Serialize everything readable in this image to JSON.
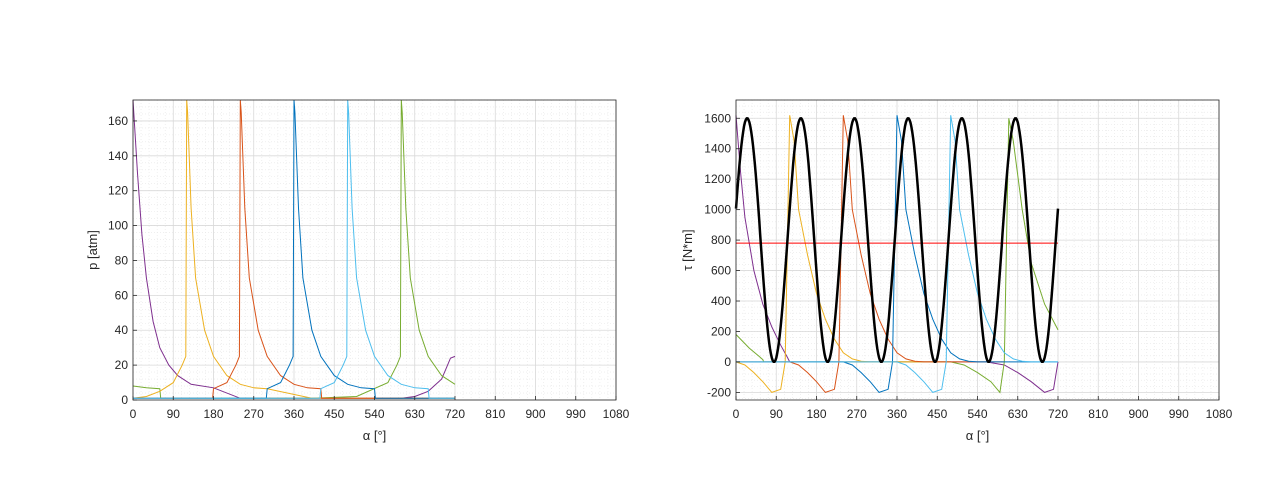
{
  "chart_data": [
    {
      "type": "line",
      "title": "",
      "xlabel": "α [°]",
      "ylabel": "p [atm]",
      "xlim": [
        0,
        1080
      ],
      "ylim": [
        0,
        172
      ],
      "xticks": [
        0,
        90,
        180,
        270,
        360,
        450,
        540,
        630,
        720,
        810,
        900,
        990,
        1080
      ],
      "yticks": [
        0,
        20,
        40,
        60,
        80,
        100,
        120,
        140,
        160
      ],
      "grid": true,
      "minor_grid": true,
      "series": [
        {
          "color": "#7E2F8E",
          "x": [
            0,
            10,
            20,
            30,
            45,
            60,
            80,
            100,
            130,
            180,
            240,
            300,
            360,
            420,
            480,
            540,
            600,
            630,
            660,
            690,
            700,
            710,
            720
          ],
          "y": [
            172,
            130,
            95,
            70,
            45,
            30,
            20,
            14,
            9,
            7,
            1,
            1,
            1,
            1,
            1,
            1,
            1,
            2,
            5,
            12,
            18,
            24,
            25
          ]
        },
        {
          "color": "#77AC30",
          "x": [
            0,
            30,
            60,
            62,
            100,
            180,
            300,
            400,
            500,
            570,
            590,
            598,
            600,
            602,
            610,
            620,
            640,
            660,
            690,
            720
          ],
          "y": [
            8,
            7,
            6.5,
            1,
            1,
            1,
            1,
            1,
            2,
            10,
            20,
            25,
            172,
            165,
            110,
            70,
            40,
            25,
            14,
            9
          ]
        },
        {
          "color": "#EDB120",
          "x": [
            0,
            30,
            60,
            90,
            110,
            118,
            120,
            122,
            130,
            140,
            160,
            180,
            210,
            240,
            270,
            300,
            400,
            500,
            600,
            720
          ],
          "y": [
            1,
            2,
            5,
            10,
            20,
            25,
            172,
            165,
            110,
            70,
            40,
            25,
            14,
            9,
            7,
            6.5,
            1,
            1,
            1,
            1
          ]
        },
        {
          "color": "#D95319",
          "x": [
            0,
            100,
            178,
            180,
            210,
            230,
            238,
            240,
            242,
            250,
            260,
            280,
            300,
            330,
            360,
            390,
            420,
            422,
            500,
            720
          ],
          "y": [
            1,
            1,
            1,
            6.5,
            10,
            20,
            25,
            172,
            165,
            110,
            70,
            40,
            25,
            14,
            9,
            7,
            6.5,
            1,
            1,
            1
          ]
        },
        {
          "color": "#0072BD",
          "x": [
            0,
            200,
            298,
            300,
            330,
            350,
            358,
            360,
            362,
            370,
            380,
            400,
            420,
            450,
            480,
            510,
            540,
            542,
            600,
            720
          ],
          "y": [
            1,
            1,
            1,
            6.5,
            10,
            20,
            25,
            172,
            165,
            110,
            70,
            40,
            25,
            14,
            9,
            7,
            6.5,
            1,
            1,
            1
          ]
        },
        {
          "color": "#4DBEEE",
          "x": [
            0,
            300,
            418,
            420,
            450,
            470,
            478,
            480,
            482,
            490,
            500,
            520,
            540,
            570,
            600,
            630,
            660,
            662,
            720
          ],
          "y": [
            1,
            1,
            1,
            6.5,
            10,
            20,
            25,
            172,
            165,
            110,
            70,
            40,
            25,
            14,
            9,
            7,
            6.5,
            1,
            1
          ]
        }
      ]
    },
    {
      "type": "line",
      "title": "",
      "xlabel": "α [°]",
      "ylabel": "τ [N*m]",
      "xlim": [
        0,
        1080
      ],
      "ylim": [
        -250,
        1720
      ],
      "xticks": [
        0,
        90,
        180,
        270,
        360,
        450,
        540,
        630,
        720,
        810,
        900,
        990,
        1080
      ],
      "yticks": [
        -200,
        0,
        200,
        400,
        600,
        800,
        1000,
        1200,
        1400,
        1600
      ],
      "grid": true,
      "minor_grid": true,
      "total_torque": {
        "color": "#000000",
        "mean": 800,
        "amplitude": 800,
        "period": 120,
        "peak_at": 25,
        "x_start": 0,
        "x_end": 720
      },
      "mean_line": {
        "color": "#FF0000",
        "x": [
          0,
          720
        ],
        "y": [
          780,
          780
        ]
      },
      "series": [
        {
          "color": "#7E2F8E",
          "x": [
            0,
            10,
            20,
            40,
            60,
            80,
            100,
            115,
            120,
            200,
            560,
            600,
            630,
            660,
            690,
            710,
            720
          ],
          "y": [
            1620,
            1250,
            950,
            600,
            380,
            230,
            110,
            30,
            0,
            0,
            0,
            -20,
            -70,
            -130,
            -200,
            -180,
            0
          ]
        },
        {
          "color": "#77AC30",
          "x": [
            0,
            10,
            30,
            50,
            60,
            62,
            480,
            510,
            540,
            570,
            590,
            600,
            610,
            620,
            640,
            660,
            690,
            720
          ],
          "y": [
            180,
            150,
            90,
            40,
            15,
            0,
            0,
            -20,
            -70,
            -130,
            -200,
            0,
            1600,
            1450,
            1000,
            650,
            380,
            210
          ]
        },
        {
          "color": "#EDB120",
          "x": [
            0,
            20,
            40,
            60,
            80,
            100,
            110,
            120,
            130,
            140,
            160,
            180,
            200,
            220,
            240,
            260,
            280,
            300,
            480
          ],
          "y": [
            0,
            -20,
            -70,
            -130,
            -200,
            -180,
            0,
            1620,
            1450,
            1000,
            700,
            450,
            280,
            150,
            60,
            20,
            5,
            0,
            0
          ]
        },
        {
          "color": "#D95319",
          "x": [
            0,
            120,
            140,
            160,
            180,
            200,
            220,
            230,
            240,
            250,
            260,
            280,
            300,
            320,
            340,
            360,
            380,
            400,
            420,
            600
          ],
          "y": [
            0,
            0,
            -20,
            -70,
            -130,
            -200,
            -180,
            0,
            1620,
            1450,
            1000,
            700,
            450,
            280,
            150,
            60,
            20,
            5,
            0,
            0
          ]
        },
        {
          "color": "#0072BD",
          "x": [
            0,
            240,
            260,
            280,
            300,
            320,
            340,
            350,
            360,
            370,
            380,
            400,
            420,
            440,
            460,
            480,
            500,
            520,
            540,
            720
          ],
          "y": [
            0,
            0,
            -20,
            -70,
            -130,
            -200,
            -180,
            0,
            1620,
            1450,
            1000,
            700,
            450,
            280,
            150,
            60,
            20,
            5,
            0,
            0
          ]
        },
        {
          "color": "#4DBEEE",
          "x": [
            0,
            360,
            380,
            400,
            420,
            440,
            460,
            470,
            480,
            490,
            500,
            520,
            540,
            560,
            580,
            600,
            620,
            640,
            660,
            720
          ],
          "y": [
            0,
            0,
            -20,
            -70,
            -130,
            -200,
            -180,
            0,
            1620,
            1450,
            1000,
            700,
            450,
            280,
            150,
            60,
            20,
            5,
            0,
            0
          ]
        }
      ]
    }
  ]
}
